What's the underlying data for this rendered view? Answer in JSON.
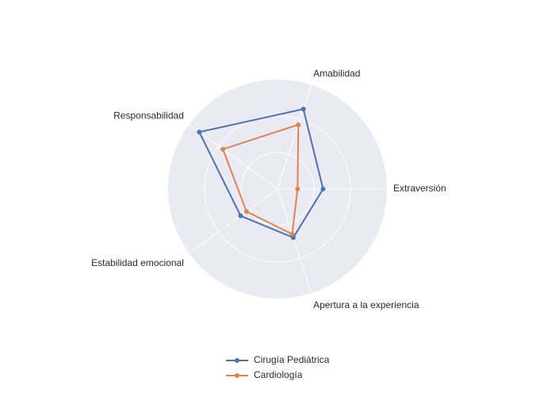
{
  "chart_data": {
    "type": "radar",
    "categories": [
      "Extraversión",
      "Amabilidad",
      "Responsabilidad",
      "Estabilidad emocional",
      "Apertura a la experiencia"
    ],
    "series": [
      {
        "name": "Cirugía Pediátrica",
        "color": "#4c72b0",
        "values": [
          2.5,
          4.6,
          5.3,
          2.5,
          2.8
        ]
      },
      {
        "name": "Cardiología",
        "color": "#dd8452",
        "values": [
          1.1,
          3.7,
          3.7,
          2.1,
          2.6
        ]
      }
    ],
    "rlim": [
      0,
      6
    ],
    "rticks": [
      2,
      4
    ],
    "grid": true,
    "legend": "bottom"
  }
}
